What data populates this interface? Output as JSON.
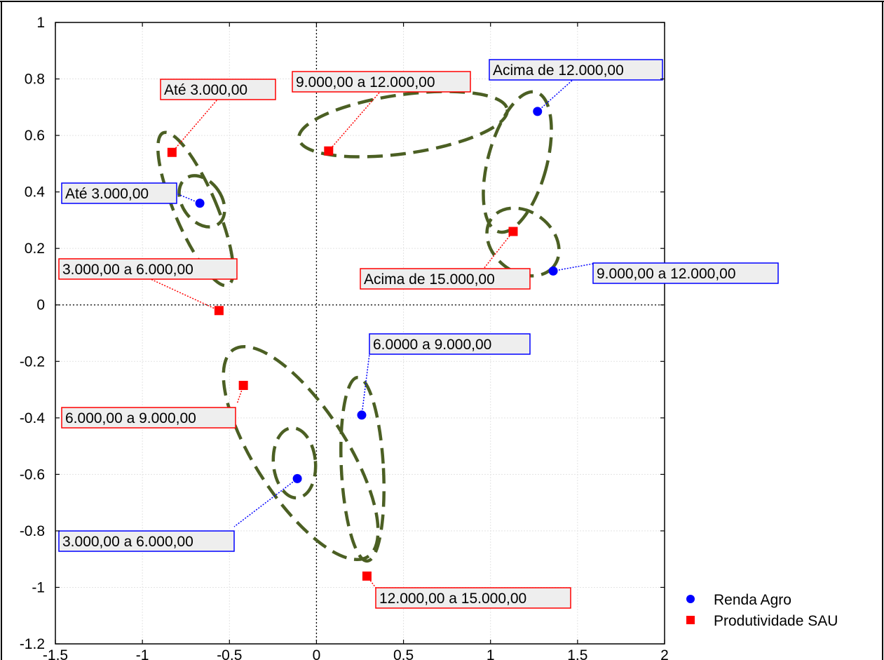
{
  "chart_data": {
    "type": "scatter",
    "title": "",
    "xlabel": "",
    "ylabel": "",
    "xlim": [
      -1.5,
      2
    ],
    "ylim": [
      -1.2,
      1
    ],
    "x_ticks": [
      -1.5,
      -1,
      -0.5,
      0,
      0.5,
      1,
      1.5,
      2
    ],
    "x_tick_labels": [
      "-1.5",
      "-1",
      "-0.5",
      "0",
      "0.5",
      "1",
      "1.5",
      "2"
    ],
    "y_ticks": [
      1,
      0.8,
      0.6,
      0.4,
      0.2,
      0,
      -0.2,
      -0.4,
      -0.6,
      -0.8,
      -1,
      -1.2
    ],
    "y_tick_labels": [
      "1",
      "0.8",
      "0.6",
      "0.4",
      "0.2",
      "0",
      "-0.2",
      "-0.4",
      "-0.6",
      "-0.8",
      "-1",
      "-1.2"
    ],
    "grid": true,
    "reference_lines": {
      "x": 0,
      "y": 0
    },
    "legend_position": "bottom-right",
    "series": [
      {
        "name": "Renda Agro",
        "marker": "circle",
        "color": "#0000ff",
        "points": [
          {
            "label": "Até 3.000,00",
            "x": -0.67,
            "y": 0.36
          },
          {
            "label": "3.000,00 a 6.000,00",
            "x": -0.11,
            "y": -0.615
          },
          {
            "label": "6.0000 a 9.000,00",
            "x": 0.26,
            "y": -0.39
          },
          {
            "label": "9.000,00 a 12.000,00",
            "x": 1.36,
            "y": 0.12
          },
          {
            "label": "Acima de 12.000,00",
            "x": 1.27,
            "y": 0.685
          }
        ]
      },
      {
        "name": "Produtividade SAU",
        "marker": "square",
        "color": "#ff0000",
        "points": [
          {
            "label": "Até 3.000,00",
            "x": -0.83,
            "y": 0.54
          },
          {
            "label": "3.000,00 a 6.000,00",
            "x": -0.56,
            "y": -0.02
          },
          {
            "label": "6.000,00 a 9.000,00",
            "x": -0.42,
            "y": -0.285
          },
          {
            "label": "9.000,00 a 12.000,00",
            "x": 0.07,
            "y": 0.545
          },
          {
            "label": "12.000,00 a 15.000,00",
            "x": 0.29,
            "y": -0.96
          },
          {
            "label": "Acima de 15.000,00",
            "x": 1.13,
            "y": 0.26
          }
        ]
      }
    ],
    "group_color": "#4b5f23"
  }
}
